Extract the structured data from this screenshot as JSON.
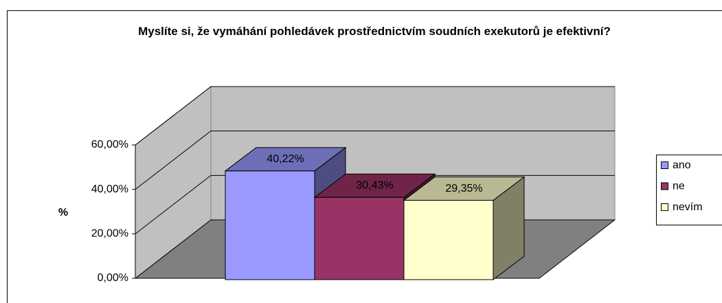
{
  "chart_data": {
    "type": "bar3d",
    "title": "Myslíte si, že vymáhání pohledávek prostřednictvím soudních exekutorů je efektivní?",
    "y_label": "%",
    "categories": [
      null
    ],
    "series": [
      {
        "name": "ano",
        "color": "#9999ff",
        "values": [
          40.22
        ],
        "value_labels": [
          "40,22%"
        ]
      },
      {
        "name": "ne",
        "color": "#993366",
        "values": [
          30.43
        ],
        "value_labels": [
          "30,43%"
        ]
      },
      {
        "name": "nevím",
        "color": "#ffffcc",
        "values": [
          29.35
        ],
        "value_labels": [
          "29,35%"
        ]
      }
    ],
    "ylim": [
      0,
      60
    ],
    "yticks": [
      {
        "value": 0,
        "label": "0,00%"
      },
      {
        "value": 20,
        "label": "20,00%"
      },
      {
        "value": 40,
        "label": "40,00%"
      },
      {
        "value": 60,
        "label": "60,00%"
      }
    ],
    "grid": true,
    "legend": "right"
  }
}
